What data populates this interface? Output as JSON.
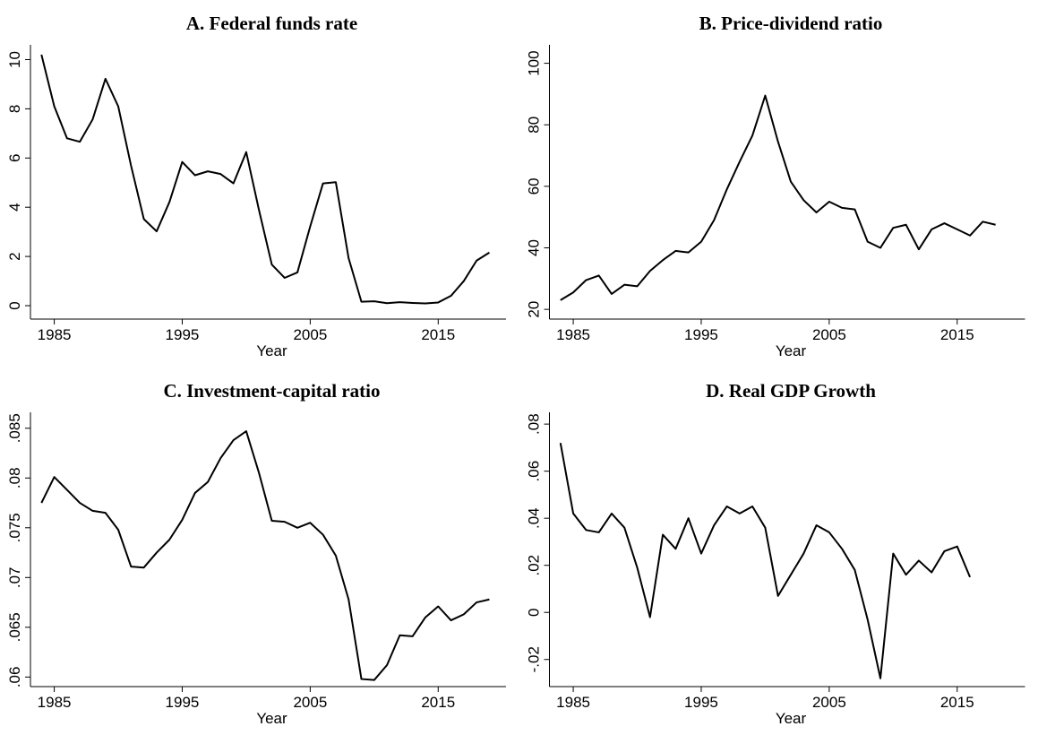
{
  "chart_data": [
    {
      "type": "line",
      "title": "A. Federal funds rate",
      "xlabel": "Year",
      "color": "#000000",
      "x": [
        1984,
        1985,
        1986,
        1987,
        1988,
        1989,
        1990,
        1991,
        1992,
        1993,
        1994,
        1995,
        1996,
        1997,
        1998,
        1999,
        2000,
        2001,
        2002,
        2003,
        2004,
        2005,
        2006,
        2007,
        2008,
        2009,
        2010,
        2011,
        2012,
        2013,
        2014,
        2015,
        2016,
        2017,
        2018,
        2019
      ],
      "values": [
        10.2,
        8.1,
        6.8,
        6.66,
        7.57,
        9.22,
        8.1,
        5.69,
        3.52,
        3.02,
        4.21,
        5.84,
        5.3,
        5.46,
        5.35,
        4.97,
        6.24,
        3.88,
        1.67,
        1.13,
        1.35,
        3.22,
        4.97,
        5.02,
        1.93,
        0.16,
        0.18,
        0.1,
        0.14,
        0.11,
        0.09,
        0.13,
        0.4,
        1.0,
        1.83,
        2.16
      ],
      "xlim": [
        1983.7,
        2020.3
      ],
      "xticks": [
        1985,
        1995,
        2005,
        2015
      ],
      "ylim": [
        -0.4,
        10.6
      ],
      "yticks": [
        0,
        2,
        4,
        6,
        8,
        10
      ]
    },
    {
      "type": "line",
      "title": "B. Price-dividend ratio",
      "xlabel": "Year",
      "color": "#000000",
      "x": [
        1984,
        1985,
        1986,
        1987,
        1988,
        1989,
        1990,
        1991,
        1992,
        1993,
        1994,
        1995,
        1996,
        1997,
        1998,
        1999,
        2000,
        2001,
        2002,
        2003,
        2004,
        2005,
        2006,
        2007,
        2008,
        2009,
        2010,
        2011,
        2012,
        2013,
        2014,
        2015,
        2016,
        2017,
        2018
      ],
      "values": [
        23,
        25.5,
        29.5,
        31,
        25,
        28,
        27.5,
        32.5,
        36,
        39,
        38.5,
        42,
        49,
        59,
        68,
        76.5,
        89.5,
        74.5,
        61.5,
        55.5,
        51.5,
        55,
        53,
        52.5,
        42,
        40,
        46.5,
        47.5,
        39.5,
        46,
        48,
        46,
        44,
        48.5,
        47.5
      ],
      "xlim": [
        1983.7,
        2020.3
      ],
      "xticks": [
        1985,
        1995,
        2005,
        2015
      ],
      "ylim": [
        18,
        106
      ],
      "yticks": [
        20,
        40,
        60,
        80,
        100
      ]
    },
    {
      "type": "line",
      "title": "C. Investment-capital ratio",
      "xlabel": "Year",
      "color": "#000000",
      "x": [
        1984,
        1985,
        1986,
        1987,
        1988,
        1989,
        1990,
        1991,
        1992,
        1993,
        1994,
        1995,
        1996,
        1997,
        1998,
        1999,
        2000,
        2001,
        2002,
        2003,
        2004,
        2005,
        2006,
        2007,
        2008,
        2009,
        2010,
        2011,
        2012,
        2013,
        2014,
        2015,
        2016,
        2017,
        2018,
        2019
      ],
      "values": [
        0.0775,
        0.0801,
        0.0788,
        0.0775,
        0.0767,
        0.0765,
        0.0748,
        0.0711,
        0.071,
        0.0725,
        0.0738,
        0.0758,
        0.0785,
        0.0796,
        0.082,
        0.0838,
        0.0847,
        0.0805,
        0.0757,
        0.0756,
        0.075,
        0.0755,
        0.0743,
        0.0722,
        0.0678,
        0.0598,
        0.0597,
        0.0612,
        0.0642,
        0.0641,
        0.066,
        0.0671,
        0.0657,
        0.0663,
        0.0675,
        0.0678
      ],
      "xlim": [
        1983.7,
        2020.3
      ],
      "xticks": [
        1985,
        1995,
        2005,
        2015
      ],
      "ylim": [
        0.0594,
        0.0866
      ],
      "yticks": [
        {
          "value": 0.06,
          "label": ".06"
        },
        {
          "value": 0.065,
          "label": ".065"
        },
        {
          "value": 0.07,
          "label": ".07"
        },
        {
          "value": 0.075,
          "label": ".075"
        },
        {
          "value": 0.08,
          "label": ".08"
        },
        {
          "value": 0.085,
          "label": ".085"
        }
      ]
    },
    {
      "type": "line",
      "title": "D. Real GDP Growth",
      "xlabel": "Year",
      "color": "#000000",
      "x": [
        1984,
        1985,
        1986,
        1987,
        1988,
        1989,
        1990,
        1991,
        1992,
        1993,
        1994,
        1995,
        1996,
        1997,
        1998,
        1999,
        2000,
        2001,
        2002,
        2003,
        2004,
        2005,
        2006,
        2007,
        2008,
        2009,
        2010,
        2011,
        2012,
        2013,
        2014,
        2015,
        2016
      ],
      "values": [
        0.072,
        0.042,
        0.035,
        0.034,
        0.042,
        0.036,
        0.019,
        -0.002,
        0.033,
        0.027,
        0.04,
        0.025,
        0.037,
        0.045,
        0.042,
        0.045,
        0.036,
        0.007,
        0.016,
        0.025,
        0.037,
        0.034,
        0.027,
        0.018,
        -0.003,
        -0.028,
        0.025,
        0.016,
        0.022,
        0.017,
        0.026,
        0.028,
        0.015
      ],
      "xlim": [
        1983.7,
        2020.3
      ],
      "xticks": [
        1985,
        1995,
        2005,
        2015
      ],
      "ylim": [
        -0.03,
        0.085
      ],
      "yticks": [
        {
          "value": -0.02,
          "label": "-.02"
        },
        {
          "value": 0,
          "label": "0"
        },
        {
          "value": 0.02,
          "label": ".02"
        },
        {
          "value": 0.04,
          "label": ".04"
        },
        {
          "value": 0.06,
          "label": ".06"
        },
        {
          "value": 0.08,
          "label": ".08"
        }
      ]
    }
  ]
}
